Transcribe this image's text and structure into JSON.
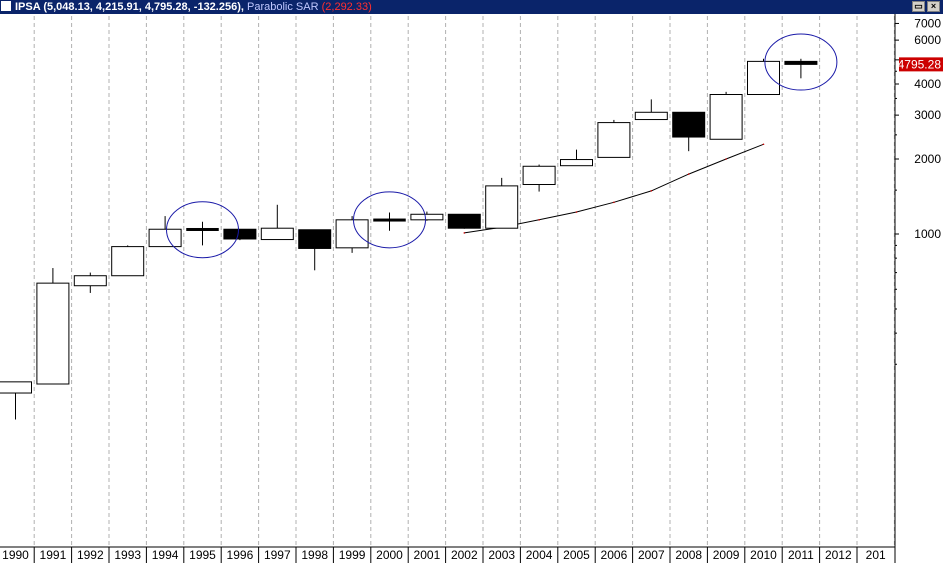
{
  "titlebar": {
    "symbol": "IPSA",
    "ohlc": "(5,048.13, 4,215.91, 4,795.28, -132.256)",
    "indicator_name": "Parabolic SAR",
    "indicator_value": "(2,292.33)",
    "restore_icon": "restore-icon",
    "close_icon": "close-icon"
  },
  "chart_data": {
    "type": "candlestick",
    "title": "IPSA (5,048.13, 4,215.91, 4,795.28, -132.256), Parabolic SAR (2,292.33)",
    "x_tick_labels": [
      "1990",
      "1991",
      "1992",
      "1993",
      "1994",
      "1995",
      "1996",
      "1997",
      "1998",
      "1999",
      "2000",
      "2001",
      "2002",
      "2003",
      "2004",
      "2005",
      "2006",
      "2007",
      "2008",
      "2009",
      "2010",
      "2011",
      "2012",
      "201"
    ],
    "y_scale": "log",
    "y_ticks": [
      1000,
      2000,
      3000,
      4000,
      5000,
      6000,
      7000
    ],
    "y_tick_labels": [
      "1000",
      "2000",
      "3000",
      "4000",
      "",
      "6000",
      "7000"
    ],
    "last_price_label": "4795.28",
    "colors": {
      "up": "#ffffff",
      "down": "#000000",
      "sar": "#000000",
      "ellipse": "#1a1aa8",
      "last_price_bg": "#cc0000"
    },
    "candles": [
      {
        "year": "1990",
        "open": 230,
        "high": 255,
        "low": 180,
        "close": 255
      },
      {
        "year": "1991",
        "open": 250,
        "high": 730,
        "low": 250,
        "close": 635
      },
      {
        "year": "1992",
        "open": 620,
        "high": 700,
        "low": 580,
        "close": 680
      },
      {
        "year": "1993",
        "open": 680,
        "high": 900,
        "low": 680,
        "close": 890
      },
      {
        "year": "1994",
        "open": 890,
        "high": 1180,
        "low": 890,
        "close": 1045
      },
      {
        "year": "1995",
        "open": 1040,
        "high": 1120,
        "low": 900,
        "close": 1045
      },
      {
        "year": "1996",
        "open": 1045,
        "high": 1045,
        "low": 945,
        "close": 955
      },
      {
        "year": "1997",
        "open": 950,
        "high": 1310,
        "low": 950,
        "close": 1055
      },
      {
        "year": "1998",
        "open": 1040,
        "high": 1040,
        "low": 715,
        "close": 875
      },
      {
        "year": "1999",
        "open": 880,
        "high": 1180,
        "low": 840,
        "close": 1140
      },
      {
        "year": "2000",
        "open": 1130,
        "high": 1220,
        "low": 1030,
        "close": 1140
      },
      {
        "year": "2001",
        "open": 1140,
        "high": 1230,
        "low": 1130,
        "close": 1200
      },
      {
        "year": "2002",
        "open": 1200,
        "high": 1200,
        "low": 1050,
        "close": 1055
      },
      {
        "year": "2003",
        "open": 1055,
        "high": 1680,
        "low": 1055,
        "close": 1560
      },
      {
        "year": "2004",
        "open": 1580,
        "high": 1900,
        "low": 1480,
        "close": 1870
      },
      {
        "year": "2005",
        "open": 1880,
        "high": 2180,
        "low": 1880,
        "close": 1990
      },
      {
        "year": "2006",
        "open": 2030,
        "high": 2870,
        "low": 2030,
        "close": 2800
      },
      {
        "year": "2007",
        "open": 2880,
        "high": 3470,
        "low": 2880,
        "close": 3080
      },
      {
        "year": "2008",
        "open": 3080,
        "high": 3080,
        "low": 2150,
        "close": 2450
      },
      {
        "year": "2009",
        "open": 2400,
        "high": 3720,
        "low": 2400,
        "close": 3630
      },
      {
        "year": "2010",
        "open": 3630,
        "high": 5050,
        "low": 3630,
        "close": 4930
      },
      {
        "year": "2011",
        "open": 4930,
        "high": 5050,
        "low": 4216,
        "close": 4795
      }
    ],
    "sar": [
      {
        "x": 12,
        "y": 1010
      },
      {
        "x": 13,
        "y": 1065
      },
      {
        "x": 14,
        "y": 1140
      },
      {
        "x": 15,
        "y": 1225
      },
      {
        "x": 16,
        "y": 1340
      },
      {
        "x": 17,
        "y": 1490
      },
      {
        "x": 18,
        "y": 1740
      },
      {
        "x": 19,
        "y": 2000
      },
      {
        "x": 20,
        "y": 2292
      }
    ],
    "ellipses": [
      {
        "year": "1995",
        "y": 1040
      },
      {
        "year": "2000",
        "y": 1140
      },
      {
        "year": "2011",
        "y": 4900
      }
    ]
  }
}
